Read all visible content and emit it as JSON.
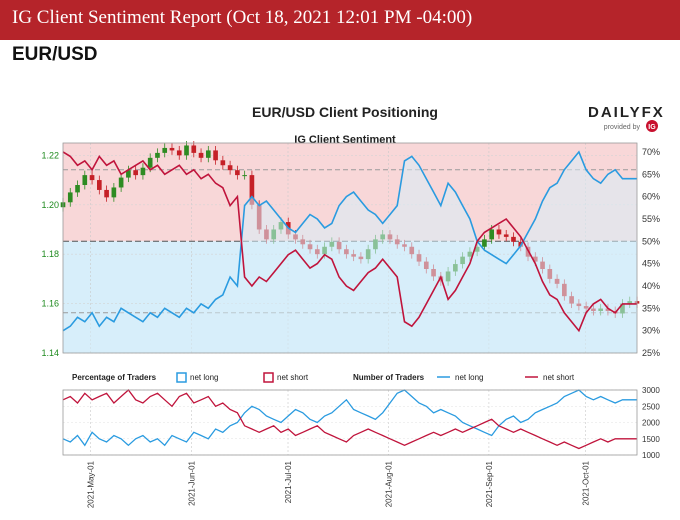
{
  "page": {
    "banner_title": "IG Client Sentiment Report (Oct 18, 2021 12:01 PM -04:00)",
    "pair": "EUR/USD"
  },
  "chart_data": {
    "type": "line",
    "title": "EUR/USD Client Positioning",
    "subtitle": "IG Client Sentiment",
    "brand": {
      "name": "DAILYFX",
      "provided_by": "provided by",
      "ig": "IG"
    },
    "x_ticks": [
      "2021-May-01",
      "2021-Jun-01",
      "2021-Jul-01",
      "2021-Aug-01",
      "2021-Sep-01",
      "2021-Oct-01"
    ],
    "price_axis": {
      "ticks": [
        "1.22",
        "1.20",
        "1.18",
        "1.16",
        "1.14"
      ],
      "ylim": [
        1.14,
        1.225
      ]
    },
    "pct_axis": {
      "ticks": [
        "70%",
        "65%",
        "60%",
        "55%",
        "50%",
        "45%",
        "40%",
        "35%",
        "30%",
        "25%"
      ],
      "ylim": [
        25,
        72
      ]
    },
    "count_axis": {
      "ticks": [
        "3000",
        "2500",
        "2000",
        "1500",
        "1000"
      ],
      "ylim": [
        1000,
        3000
      ]
    },
    "reference_levels": {
      "upper_pct": 66,
      "mid_pct": 50,
      "lower_pct": 34
    },
    "series": [
      {
        "name": "EUR/USD price (candles)",
        "values": [
          1.201,
          1.205,
          1.208,
          1.212,
          1.21,
          1.206,
          1.203,
          1.207,
          1.211,
          1.214,
          1.212,
          1.215,
          1.219,
          1.221,
          1.223,
          1.222,
          1.22,
          1.224,
          1.221,
          1.219,
          1.222,
          1.218,
          1.216,
          1.214,
          1.212,
          1.212,
          1.2,
          1.19,
          1.186,
          1.19,
          1.193,
          1.188,
          1.186,
          1.184,
          1.182,
          1.18,
          1.183,
          1.185,
          1.182,
          1.18,
          1.179,
          1.178,
          1.182,
          1.186,
          1.188,
          1.186,
          1.184,
          1.183,
          1.18,
          1.177,
          1.174,
          1.171,
          1.169,
          1.173,
          1.176,
          1.179,
          1.181,
          1.183,
          1.186,
          1.19,
          1.188,
          1.187,
          1.185,
          1.183,
          1.179,
          1.177,
          1.174,
          1.17,
          1.168,
          1.163,
          1.16,
          1.159,
          1.158,
          1.157,
          1.158,
          1.157,
          1.156,
          1.16,
          1.161,
          1.16
        ]
      },
      {
        "name": "Percentage net long (%)",
        "values": [
          30,
          31,
          33,
          32,
          34,
          31,
          33,
          32,
          35,
          34,
          33,
          32,
          34,
          33,
          35,
          34,
          33,
          35,
          34,
          36,
          35,
          37,
          38,
          42,
          40,
          58,
          60,
          58,
          59,
          57,
          55,
          53,
          52,
          54,
          56,
          55,
          53,
          54,
          58,
          60,
          61,
          59,
          57,
          56,
          54,
          56,
          58,
          68,
          69,
          67,
          64,
          61,
          58,
          63,
          61,
          58,
          55,
          50,
          48,
          47,
          46,
          45,
          47,
          49,
          52,
          55,
          59,
          62,
          63,
          66,
          68,
          70,
          66,
          64,
          63,
          65,
          66,
          64,
          64,
          64
        ]
      },
      {
        "name": "Number of traders net long",
        "values": [
          1500,
          1400,
          1600,
          1300,
          1700,
          1500,
          1400,
          1600,
          1500,
          1300,
          1500,
          1600,
          1400,
          1500,
          1300,
          1600,
          1500,
          1400,
          1700,
          1600,
          1500,
          1800,
          1700,
          1900,
          2000,
          2300,
          2500,
          2400,
          2200,
          2100,
          2000,
          2200,
          2400,
          2300,
          2100,
          2000,
          2200,
          2300,
          2500,
          2700,
          2400,
          2300,
          2200,
          2100,
          2300,
          2600,
          2900,
          3000,
          2800,
          2600,
          2500,
          2300,
          2400,
          2300,
          2200,
          2000,
          1900,
          1800,
          1700,
          1600,
          1900,
          2100,
          2200,
          2000,
          2100,
          2300,
          2400,
          2500,
          2600,
          2800,
          2900,
          3000,
          2800,
          2700,
          2800,
          2700,
          2600,
          2700,
          2700,
          2700
        ]
      },
      {
        "name": "Number of traders net short",
        "values": [
          2700,
          2800,
          2600,
          2900,
          2700,
          2800,
          2900,
          2600,
          2800,
          3000,
          2700,
          2600,
          2800,
          2900,
          2700,
          2500,
          2800,
          2900,
          2600,
          2700,
          2800,
          2500,
          2600,
          2400,
          2300,
          1900,
          1800,
          1700,
          1800,
          1900,
          1700,
          1800,
          1600,
          1700,
          1800,
          1900,
          1700,
          1600,
          1500,
          1400,
          1600,
          1700,
          1800,
          1700,
          1600,
          1500,
          1400,
          1300,
          1400,
          1500,
          1600,
          1700,
          1600,
          1700,
          1800,
          1700,
          1800,
          1900,
          2000,
          2100,
          1900,
          1800,
          1700,
          1800,
          1700,
          1600,
          1500,
          1400,
          1300,
          1400,
          1300,
          1200,
          1300,
          1400,
          1500,
          1400,
          1500,
          1500,
          1500,
          1500
        ]
      }
    ],
    "legend": {
      "pct_label": "Percentage of Traders",
      "pct_long": "net long",
      "pct_short": "net short",
      "num_label": "Number of Traders",
      "num_long": "net long",
      "num_short": "net short"
    },
    "colors": {
      "banner": "#b5242a",
      "long_line": "#2a9be0",
      "short_line": "#c0143c",
      "short_fill": "#f8d7d8",
      "long_fill": "#d7eefa",
      "bull_candle": "#2e8b22",
      "bear_candle": "#c52027",
      "price_axis_text": "#1e8a1e"
    }
  }
}
